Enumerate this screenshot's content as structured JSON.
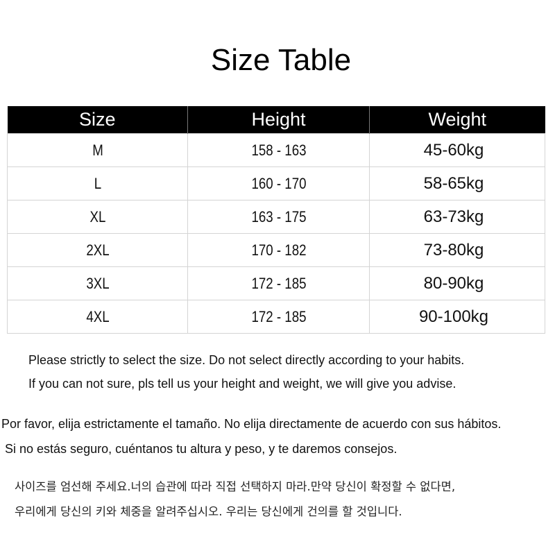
{
  "title": "Size Table",
  "table": {
    "headers": [
      "Size",
      "Height",
      "Weight"
    ],
    "rows": [
      [
        "M",
        "158 - 163",
        "45-60kg"
      ],
      [
        "L",
        "160 - 170",
        "58-65kg"
      ],
      [
        "XL",
        "163 - 175",
        "63-73kg"
      ],
      [
        "2XL",
        "170 - 182",
        "73-80kg"
      ],
      [
        "3XL",
        "172 - 185",
        "80-90kg"
      ],
      [
        "4XL",
        "172 - 185",
        "90-100kg"
      ]
    ]
  },
  "notes": {
    "english": [
      "Please strictly to select the size. Do not select directly according to your habits.",
      "If you can not sure, pls tell us your height and weight, we will give you advise."
    ],
    "spanish": [
      "Por favor, elija estrictamente el tamaño. No elija directamente de acuerdo con sus hábitos.",
      "Si no estás seguro, cuéntanos tu altura y peso, y te daremos consejos."
    ],
    "korean": [
      "사이즈를 엄선해 주세요.너의 습관에 따라 직접 선택하지 마라.만약 당신이 확정할 수 없다면,",
      "우리에게 당신의 키와 체중을 알려주십시오. 우리는 당신에게 건의를 할 것입니다."
    ]
  }
}
